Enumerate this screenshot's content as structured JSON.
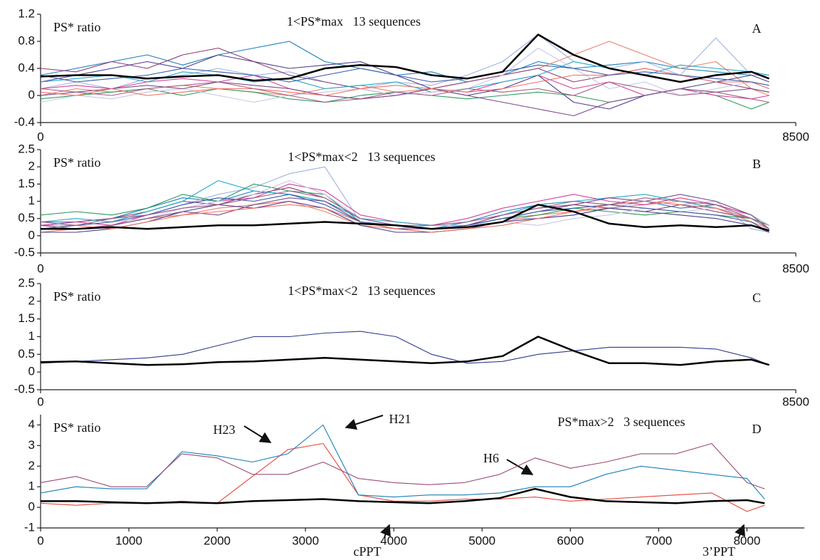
{
  "chart_data": [
    {
      "type": "line",
      "title": "1<PS*max   13 sequences",
      "ylabel": "PS* ratio",
      "panel_label": "A",
      "x": [
        0,
        400,
        800,
        1200,
        1600,
        2000,
        2400,
        2800,
        3200,
        3600,
        4000,
        4400,
        4800,
        5200,
        5600,
        6000,
        6400,
        6800,
        7200,
        7600,
        8000,
        8200
      ],
      "xlim": [
        0,
        8500
      ],
      "xticks": [
        0,
        8500
      ],
      "ylim": [
        -0.4,
        1.2
      ],
      "yticks": [
        -0.4,
        0,
        0.4,
        0.8,
        1.2
      ],
      "series": [
        {
          "color": "#1a7fb8",
          "values": [
            0.3,
            0.4,
            0.5,
            0.6,
            0.45,
            0.6,
            0.7,
            0.8,
            0.5,
            0.4,
            0.3,
            0.35,
            0.2,
            0.3,
            0.5,
            0.4,
            0.45,
            0.5,
            0.4,
            0.35,
            0.3,
            0.3
          ]
        },
        {
          "color": "#9fb3de",
          "values": [
            0.1,
            0.2,
            0.1,
            0.25,
            0.3,
            0.4,
            0.3,
            0.35,
            0.2,
            0.1,
            0.2,
            0.15,
            0.3,
            0.5,
            0.9,
            0.5,
            0.4,
            0.5,
            0.3,
            0.85,
            0.3,
            0.3
          ]
        },
        {
          "color": "#e8826e",
          "values": [
            0,
            0.1,
            0.05,
            0.1,
            0.15,
            0.1,
            0.05,
            0,
            0.1,
            0.15,
            0.05,
            0.1,
            0.2,
            0.3,
            0.4,
            0.6,
            0.8,
            0.6,
            0.4,
            0.5,
            0.1,
            0
          ]
        },
        {
          "color": "#8a3d76",
          "values": [
            0.4,
            0.35,
            0.5,
            0.4,
            0.6,
            0.7,
            0.5,
            0.3,
            0.2,
            0.1,
            0,
            0.1,
            0.2,
            0.3,
            0.4,
            0.2,
            0.3,
            0.4,
            0.3,
            0.2,
            0.1,
            0.05
          ]
        },
        {
          "color": "#2b9a5b",
          "values": [
            -0.05,
            0,
            0.05,
            0.1,
            0,
            0.1,
            0.05,
            -0.05,
            -0.1,
            0,
            0.05,
            0,
            -0.05,
            0,
            0.05,
            0,
            -0.1,
            0,
            0.1,
            0,
            -0.2,
            -0.1
          ]
        },
        {
          "color": "#d63f9a",
          "values": [
            0.1,
            0.15,
            0.1,
            0.2,
            0.25,
            0.2,
            0.3,
            0.1,
            0,
            -0.05,
            0,
            0.1,
            0.05,
            0.2,
            0.3,
            0.1,
            0.2,
            0,
            0.1,
            0,
            -0.05,
            0
          ]
        },
        {
          "color": "#4f3d8f",
          "values": [
            0.2,
            0.3,
            0.4,
            0.5,
            0.4,
            0.6,
            0.5,
            0.4,
            0.45,
            0.5,
            0.3,
            0.1,
            0,
            0.1,
            0.3,
            -0.1,
            -0.2,
            0,
            0.1,
            0.2,
            0.3,
            0.2
          ]
        },
        {
          "color": "#1fa8c9",
          "values": [
            0.2,
            0.25,
            0.3,
            0.2,
            0.35,
            0.3,
            0.2,
            0.25,
            0.1,
            0.15,
            0.2,
            0.05,
            0.1,
            0.2,
            0.3,
            0.5,
            0.4,
            0.3,
            0.45,
            0.4,
            0.35,
            0.3
          ]
        },
        {
          "color": "#c5c8e8",
          "values": [
            -0.1,
            0,
            -0.05,
            0.05,
            0.1,
            0,
            -0.1,
            0,
            0.05,
            0.1,
            0,
            0.05,
            0.1,
            0.3,
            0.7,
            0.4,
            0.1,
            0.2,
            0,
            0.1,
            0.2,
            0.1
          ]
        },
        {
          "color": "#7a4a8c",
          "values": [
            0,
            0.05,
            0.1,
            0.15,
            0.1,
            0.2,
            0.15,
            0.1,
            0,
            -0.05,
            0,
            0.1,
            0,
            -0.1,
            -0.2,
            -0.3,
            -0.1,
            0,
            0.1,
            0.05,
            0.1,
            0.05
          ]
        },
        {
          "color": "#f2705f",
          "values": [
            0.05,
            0,
            0.1,
            0,
            0.05,
            0.1,
            0.1,
            0.05,
            0,
            0.1,
            0.15,
            0.1,
            0.05,
            0.1,
            0.2,
            0.3,
            0.3,
            0.4,
            0.3,
            0.2,
            0.2,
            0.1
          ]
        },
        {
          "color": "#3a59a8",
          "values": [
            0.3,
            0.2,
            0.25,
            0.3,
            0.4,
            0.35,
            0.3,
            0.2,
            0.3,
            0.4,
            0.3,
            0.2,
            0.25,
            0.35,
            0.45,
            0.4,
            0.3,
            0.35,
            0.3,
            0.25,
            0.2,
            0.15
          ]
        },
        {
          "color": "#a65d86",
          "values": [
            0.1,
            0.05,
            0,
            0.1,
            0.15,
            0.2,
            0.1,
            0,
            -0.1,
            -0.05,
            0.05,
            0,
            0.1,
            0.05,
            0.1,
            0,
            0.2,
            0.1,
            0,
            0.05,
            -0.05,
            -0.1
          ]
        },
        {
          "color": "#000000",
          "line_width": 2.5,
          "values": [
            0.28,
            0.3,
            0.3,
            0.25,
            0.28,
            0.3,
            0.22,
            0.25,
            0.4,
            0.45,
            0.42,
            0.3,
            0.25,
            0.35,
            0.9,
            0.6,
            0.4,
            0.3,
            0.2,
            0.3,
            0.35,
            0.25
          ]
        }
      ]
    },
    {
      "type": "line",
      "title": "1<PS*max<2   13 sequences",
      "ylabel": "PS* ratio",
      "panel_label": "B",
      "x": [
        0,
        400,
        800,
        1200,
        1600,
        2000,
        2400,
        2800,
        3200,
        3600,
        4000,
        4400,
        4800,
        5200,
        5600,
        6000,
        6400,
        6800,
        7200,
        7600,
        8000,
        8200
      ],
      "xlim": [
        0,
        8500
      ],
      "xticks": [
        0,
        8500
      ],
      "ylim": [
        -0.5,
        2.5
      ],
      "yticks": [
        -0.5,
        0,
        0.5,
        1,
        1.5,
        2,
        2.5
      ],
      "series": [
        {
          "color": "#1a7fb8",
          "values": [
            0.4,
            0.4,
            0.5,
            0.8,
            1.1,
            1.0,
            1.3,
            1.2,
            1.0,
            0.5,
            0.3,
            0.2,
            0.4,
            0.7,
            0.9,
            1.0,
            0.9,
            1.0,
            0.8,
            0.9,
            0.6,
            0.3
          ]
        },
        {
          "color": "#9fb3de",
          "values": [
            0.3,
            0.3,
            0.4,
            0.6,
            0.9,
            1.2,
            1.4,
            1.8,
            2.0,
            0.4,
            0.2,
            0.3,
            0.3,
            0.5,
            0.5,
            0.6,
            0.8,
            1.0,
            0.9,
            1.0,
            0.2,
            0.1
          ]
        },
        {
          "color": "#e8826e",
          "values": [
            0.1,
            0.2,
            0.3,
            0.5,
            0.6,
            0.8,
            0.9,
            1.0,
            0.7,
            0.3,
            0.2,
            0.1,
            0.2,
            0.4,
            0.6,
            0.7,
            0.8,
            0.9,
            1.0,
            0.8,
            0.4,
            0.2
          ]
        },
        {
          "color": "#8a3d76",
          "values": [
            0.3,
            0.4,
            0.5,
            0.7,
            1.0,
            0.9,
            1.2,
            1.4,
            1.1,
            0.5,
            0.3,
            0.2,
            0.3,
            0.6,
            0.8,
            0.9,
            0.8,
            0.7,
            0.9,
            0.7,
            0.5,
            0.3
          ]
        },
        {
          "color": "#2b9a5b",
          "values": [
            0.6,
            0.7,
            0.6,
            0.8,
            1.2,
            1.0,
            1.5,
            1.3,
            1.2,
            0.4,
            0.3,
            0.2,
            0.3,
            0.5,
            0.6,
            0.8,
            0.7,
            0.6,
            0.7,
            0.6,
            0.5,
            0.3
          ]
        },
        {
          "color": "#d63f9a",
          "values": [
            0.3,
            0.4,
            0.3,
            0.6,
            0.8,
            1.0,
            1.1,
            1.5,
            1.3,
            0.6,
            0.4,
            0.3,
            0.5,
            0.8,
            1.0,
            1.2,
            1.0,
            0.9,
            1.1,
            0.9,
            0.6,
            0.2
          ]
        },
        {
          "color": "#4f3d8f",
          "values": [
            0.1,
            0.1,
            0.2,
            0.4,
            0.7,
            0.9,
            0.8,
            1.0,
            0.8,
            0.3,
            0.1,
            0.1,
            0.2,
            0.4,
            0.5,
            0.6,
            0.8,
            0.7,
            0.6,
            0.5,
            0.3,
            0.1
          ]
        },
        {
          "color": "#1fa8c9",
          "values": [
            0.4,
            0.5,
            0.4,
            0.7,
            1.0,
            1.6,
            1.3,
            1.2,
            1.0,
            0.5,
            0.4,
            0.3,
            0.4,
            0.6,
            0.9,
            1.0,
            1.1,
            1.2,
            1.0,
            0.8,
            0.5,
            0.2
          ]
        },
        {
          "color": "#c5c8e8",
          "values": [
            0.2,
            0.3,
            0.4,
            0.5,
            0.8,
            1.0,
            1.2,
            1.6,
            1.2,
            0.5,
            0.3,
            0.2,
            0.3,
            0.4,
            0.3,
            0.5,
            0.6,
            0.8,
            0.7,
            0.8,
            0.6,
            0.3
          ]
        },
        {
          "color": "#7a4a8c",
          "values": [
            0.3,
            0.2,
            0.3,
            0.5,
            0.7,
            0.6,
            0.9,
            1.1,
            1.0,
            0.4,
            0.2,
            0.2,
            0.3,
            0.5,
            0.7,
            0.9,
            1.1,
            1.0,
            1.2,
            1.0,
            0.6,
            0.2
          ]
        },
        {
          "color": "#f2705f",
          "values": [
            0.2,
            0.3,
            0.2,
            0.4,
            0.6,
            0.7,
            0.8,
            0.9,
            0.8,
            0.4,
            0.2,
            0.1,
            0.2,
            0.3,
            0.5,
            0.7,
            0.9,
            1.0,
            0.9,
            0.8,
            0.5,
            0.2
          ]
        },
        {
          "color": "#3a59a8",
          "values": [
            0.2,
            0.3,
            0.4,
            0.6,
            0.9,
            1.1,
            1.0,
            1.2,
            0.9,
            0.4,
            0.3,
            0.2,
            0.3,
            0.5,
            0.7,
            0.8,
            0.9,
            0.8,
            0.7,
            0.6,
            0.4,
            0.1
          ]
        },
        {
          "color": "#a65d86",
          "values": [
            0.4,
            0.3,
            0.5,
            0.6,
            0.8,
            0.9,
            1.1,
            1.3,
            1.1,
            0.5,
            0.3,
            0.3,
            0.4,
            0.6,
            0.8,
            1.0,
            0.9,
            1.1,
            1.0,
            0.9,
            0.5,
            0.2
          ]
        },
        {
          "color": "#000000",
          "line_width": 2.5,
          "values": [
            0.2,
            0.2,
            0.25,
            0.2,
            0.25,
            0.3,
            0.3,
            0.35,
            0.4,
            0.35,
            0.3,
            0.2,
            0.25,
            0.4,
            0.9,
            0.7,
            0.35,
            0.25,
            0.3,
            0.25,
            0.3,
            0.15
          ]
        }
      ]
    },
    {
      "type": "line",
      "title": "1<PS*max<2   13 sequences",
      "ylabel": "PS* ratio",
      "panel_label": "C",
      "x": [
        0,
        400,
        800,
        1200,
        1600,
        2000,
        2400,
        2800,
        3200,
        3600,
        4000,
        4400,
        4800,
        5200,
        5600,
        6000,
        6400,
        6800,
        7200,
        7600,
        8000,
        8200
      ],
      "xlim": [
        0,
        8500
      ],
      "xticks": [
        0,
        8500
      ],
      "ylim": [
        -0.5,
        2.5
      ],
      "yticks": [
        -0.5,
        0,
        0.5,
        1,
        1.5,
        2,
        2.5
      ],
      "series": [
        {
          "color": "#2e3a8f",
          "values": [
            0.25,
            0.3,
            0.35,
            0.4,
            0.5,
            0.75,
            1.0,
            1.0,
            1.1,
            1.15,
            1.0,
            0.5,
            0.25,
            0.3,
            0.5,
            0.6,
            0.7,
            0.7,
            0.7,
            0.65,
            0.4,
            0.2
          ]
        },
        {
          "color": "#000000",
          "line_width": 2.5,
          "values": [
            0.28,
            0.3,
            0.25,
            0.2,
            0.22,
            0.28,
            0.3,
            0.35,
            0.4,
            0.35,
            0.3,
            0.25,
            0.3,
            0.45,
            1.0,
            0.6,
            0.25,
            0.25,
            0.2,
            0.3,
            0.35,
            0.2
          ]
        }
      ]
    },
    {
      "type": "line",
      "title": "PS*max>2   3 sequences",
      "ylabel": "PS* ratio",
      "panel_label": "D",
      "x": [
        0,
        400,
        800,
        1200,
        1600,
        2000,
        2400,
        2800,
        3200,
        3600,
        4000,
        4400,
        4800,
        5200,
        5600,
        6000,
        6400,
        6800,
        7200,
        7600,
        8000,
        8200
      ],
      "xlim": [
        0,
        8650
      ],
      "xticks": [
        0,
        1000,
        2000,
        3000,
        4000,
        5000,
        6000,
        7000,
        8000
      ],
      "ylim": [
        -1,
        4.5
      ],
      "yticks": [
        -1,
        0,
        1,
        2,
        3,
        4
      ],
      "annotations": [
        "H23",
        "H21",
        "H6",
        "cPPT",
        "3’PPT"
      ],
      "series": [
        {
          "color": "#e8433a",
          "values": [
            0.2,
            0.1,
            0.2,
            0.2,
            0.3,
            0.2,
            1.5,
            2.8,
            3.1,
            0.6,
            0.3,
            0.3,
            0.4,
            0.4,
            0.5,
            0.3,
            0.4,
            0.5,
            0.6,
            0.7,
            -0.2,
            0.1
          ]
        },
        {
          "color": "#1a7fb8",
          "values": [
            0.7,
            1.0,
            0.9,
            0.9,
            2.7,
            2.5,
            2.2,
            2.6,
            4.0,
            0.6,
            0.5,
            0.6,
            0.6,
            0.7,
            1.0,
            1.0,
            1.6,
            2.0,
            1.8,
            1.6,
            1.4,
            0.4
          ]
        },
        {
          "color": "#9b4a78",
          "values": [
            1.2,
            1.5,
            1.0,
            1.0,
            2.6,
            2.4,
            1.6,
            1.6,
            2.2,
            1.4,
            1.2,
            1.1,
            1.2,
            1.6,
            2.4,
            1.9,
            2.2,
            2.6,
            2.6,
            3.1,
            1.2,
            0.9
          ]
        },
        {
          "color": "#000000",
          "line_width": 2.5,
          "values": [
            0.3,
            0.3,
            0.25,
            0.2,
            0.25,
            0.2,
            0.3,
            0.35,
            0.4,
            0.3,
            0.25,
            0.2,
            0.3,
            0.45,
            0.9,
            0.5,
            0.3,
            0.25,
            0.2,
            0.3,
            0.35,
            0.2
          ]
        }
      ]
    }
  ]
}
